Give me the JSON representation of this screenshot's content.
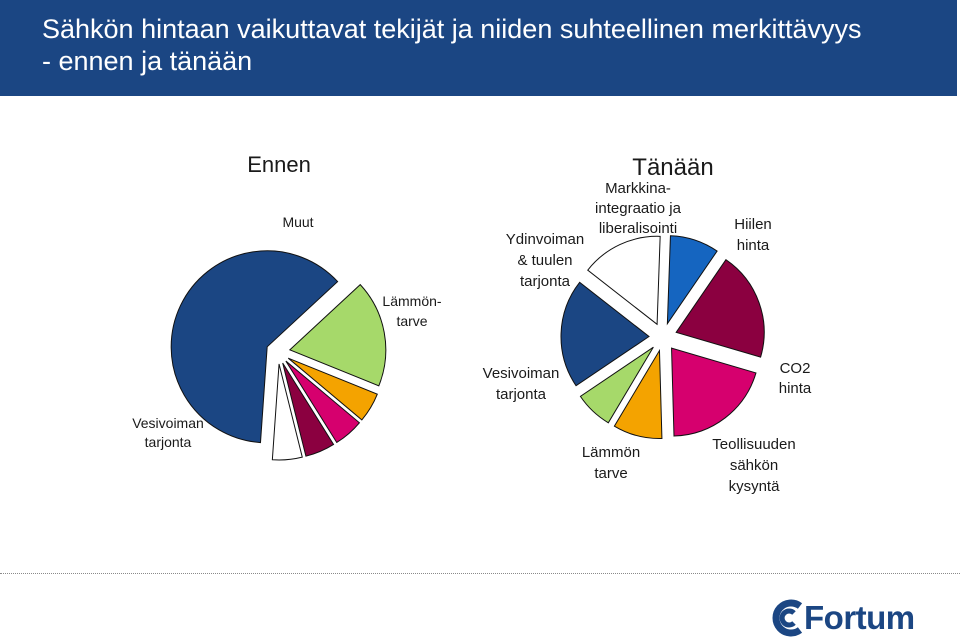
{
  "header": {
    "title": "Sähkön hintaan vaikuttavat tekijät ja niiden suhteellinen merkittävyys\n- ennen ja tänään"
  },
  "colors": {
    "header_bg": "#1b4683",
    "vesivoima": "#1b4683",
    "lammon_tarve": "#a6d96a",
    "orange": "#f4a300",
    "pink": "#d6006e",
    "maroon": "#8b0040",
    "white_slice": "#ffffff",
    "blue": "#1565c0"
  },
  "chart_data": [
    {
      "type": "pie",
      "title": "Ennen",
      "labels": [
        "Vesivoiman tarjonta",
        "Lämmön-tarve",
        "Muut"
      ],
      "slices": [
        {
          "value": 62,
          "color": "#1b4683",
          "exploded": true
        },
        {
          "value": 18,
          "color": "#a6d96a",
          "exploded": true
        },
        {
          "value": 5,
          "color": "#f4a300",
          "exploded": true
        },
        {
          "value": 5,
          "color": "#d6006e",
          "exploded": true
        },
        {
          "value": 5,
          "color": "#8b0040",
          "exploded": true
        },
        {
          "value": 5,
          "color": "#ffffff",
          "exploded": true
        }
      ]
    },
    {
      "type": "pie",
      "title": "Tänään",
      "labels": [
        "Markkina-integraatio ja liberalisointi",
        "Hiilen hinta",
        "CO2 hinta",
        "Teollisuuden sähkön kysyntä",
        "Lämmön tarve",
        "Vesivoiman tarjonta",
        "Ydinvoiman & tuulen tarjonta"
      ],
      "slices": [
        {
          "value": 9,
          "color": "#1565c0"
        },
        {
          "value": 20,
          "color": "#8b0040"
        },
        {
          "value": 20,
          "color": "#d6006e"
        },
        {
          "value": 9,
          "color": "#f4a300"
        },
        {
          "value": 7,
          "color": "#a6d96a"
        },
        {
          "value": 20,
          "color": "#1b4683"
        },
        {
          "value": 15,
          "color": "#ffffff"
        }
      ]
    }
  ],
  "labels": {
    "ennen_title": "Ennen",
    "tanaan_title": "Tänään",
    "muut": "Muut",
    "lammon_tarve_1": "Lämmön-",
    "lammon_tarve_2": "tarve",
    "vesivoima_1": "Vesivoiman",
    "vesivoima_2": "tarjonta",
    "ydin_1": "Ydinvoiman",
    "ydin_2": "& tuulen",
    "ydin_3": "tarjonta",
    "markkina_1": "Markkina-",
    "markkina_2": "integraatio ja",
    "markkina_3": "liberalisointi",
    "hiilen_1": "Hiilen",
    "hiilen_2": "hinta",
    "co2_1": "CO2",
    "co2_2": "hinta",
    "teoll_1": "Teollisuuden",
    "teoll_2": "sähkön",
    "teoll_3": "kysyntä",
    "lammon_1": "Lämmön",
    "lammon_2": "tarve",
    "vesi2_1": "Vesivoiman",
    "vesi2_2": "tarjonta"
  },
  "logo": {
    "text": "Fortum",
    "icon": "fortum-logo-icon"
  }
}
